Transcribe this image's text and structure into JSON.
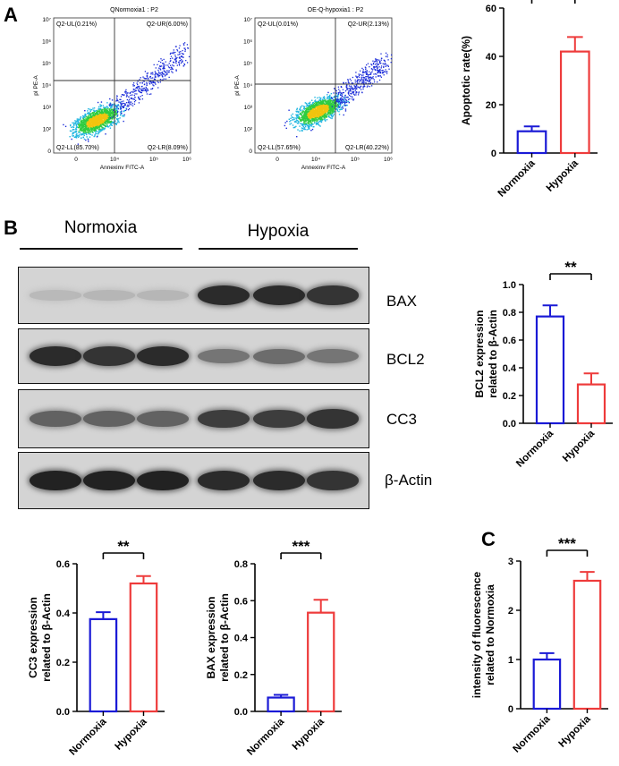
{
  "panel_labels": {
    "a": "A",
    "b": "B",
    "c": "C"
  },
  "flow": [
    {
      "title": "QNormoxia1 : P2",
      "ylabel": "pI PE-A",
      "xlabel": "Annexinv FITC-A",
      "yticks": [
        "10⁷",
        "10⁶",
        "10⁵",
        "10⁴",
        "10³",
        "10²",
        "0"
      ],
      "xticks": [
        "0",
        "10⁴",
        "10⁵",
        "10⁶"
      ],
      "quadrants": {
        "ul": "Q2-UL(0.21%)",
        "ur": "Q2-UR(6.00%)",
        "ll": "Q2-LL(85.70%)",
        "lr": "Q2-LR(8.09%)"
      }
    },
    {
      "title": "OE-Q-hypoxia1 : P2",
      "ylabel": "pI PE-A",
      "xlabel": "Annexinv FITC-A",
      "yticks": [
        "10⁷",
        "10⁶",
        "10⁵",
        "10⁴",
        "10³",
        "10²",
        "0"
      ],
      "xticks": [
        "0",
        "10⁴",
        "10⁵",
        "10⁶"
      ],
      "quadrants": {
        "ul": "Q2-UL(0.01%)",
        "ur": "Q2-UR(2.13%)",
        "ll": "Q2-LL(57.65%)",
        "lr": "Q2-LR(40.22%)"
      }
    }
  ],
  "blot": {
    "group_labels": [
      "Normoxia",
      "Hypoxia"
    ],
    "proteins": [
      "BAX",
      "BCL2",
      "CC3",
      "β-Actin"
    ],
    "band_intensity": {
      "BAX": [
        0.08,
        0.1,
        0.1,
        0.85,
        0.85,
        0.8
      ],
      "BCL2": [
        0.85,
        0.8,
        0.85,
        0.45,
        0.5,
        0.45
      ],
      "CC3": [
        0.55,
        0.55,
        0.55,
        0.75,
        0.75,
        0.8
      ],
      "β-Actin": [
        0.9,
        0.9,
        0.9,
        0.85,
        0.85,
        0.8
      ]
    }
  },
  "colors": {
    "normoxia": "#1a1ad6",
    "hypoxia": "#ee3b3b",
    "axis": "#000000"
  },
  "chart_data": [
    {
      "id": "apoptotic",
      "type": "bar",
      "categories": [
        "Normoxia",
        "Hypoxia"
      ],
      "values": [
        9,
        42
      ],
      "errors": [
        2,
        6
      ],
      "ylabel": "Apoptotic rate(%)",
      "ylim": [
        0,
        60
      ],
      "yticks": [
        0,
        20,
        40,
        60
      ],
      "significance": "***"
    },
    {
      "id": "bcl2",
      "type": "bar",
      "categories": [
        "Normoxia",
        "Hypoxia"
      ],
      "values": [
        0.77,
        0.28
      ],
      "errors": [
        0.08,
        0.08
      ],
      "ylabel": [
        "BCL2 expression",
        "related to β-Actin"
      ],
      "ylim": [
        0,
        1.0
      ],
      "yticks": [
        "0.0",
        "0.2",
        "0.4",
        "0.6",
        "0.8",
        "1.0"
      ],
      "significance": "**"
    },
    {
      "id": "cc3",
      "type": "bar",
      "categories": [
        "Normoxia",
        "Hypoxia"
      ],
      "values": [
        0.375,
        0.52
      ],
      "errors": [
        0.028,
        0.03
      ],
      "ylabel": [
        "CC3 expression",
        "related to β-Actin"
      ],
      "ylim": [
        0,
        0.6
      ],
      "yticks": [
        "0.0",
        "0.2",
        "0.4",
        "0.6"
      ],
      "significance": "**"
    },
    {
      "id": "bax",
      "type": "bar",
      "categories": [
        "Normoxia",
        "Hypoxia"
      ],
      "values": [
        0.075,
        0.535
      ],
      "errors": [
        0.015,
        0.07
      ],
      "ylabel": [
        "BAX expression",
        "related to β-Actin"
      ],
      "ylim": [
        0,
        0.8
      ],
      "yticks": [
        "0.0",
        "0.2",
        "0.4",
        "0.6",
        "0.8"
      ],
      "significance": "***"
    },
    {
      "id": "fluorescence",
      "type": "bar",
      "categories": [
        "Normoxia",
        "Hypoxia"
      ],
      "values": [
        1.0,
        2.6
      ],
      "errors": [
        0.13,
        0.18
      ],
      "ylabel": [
        "intensity of fluorescence",
        "related to Normoxia"
      ],
      "ylim": [
        0,
        3
      ],
      "yticks": [
        "0",
        "1",
        "2",
        "3"
      ],
      "significance": "***"
    }
  ]
}
